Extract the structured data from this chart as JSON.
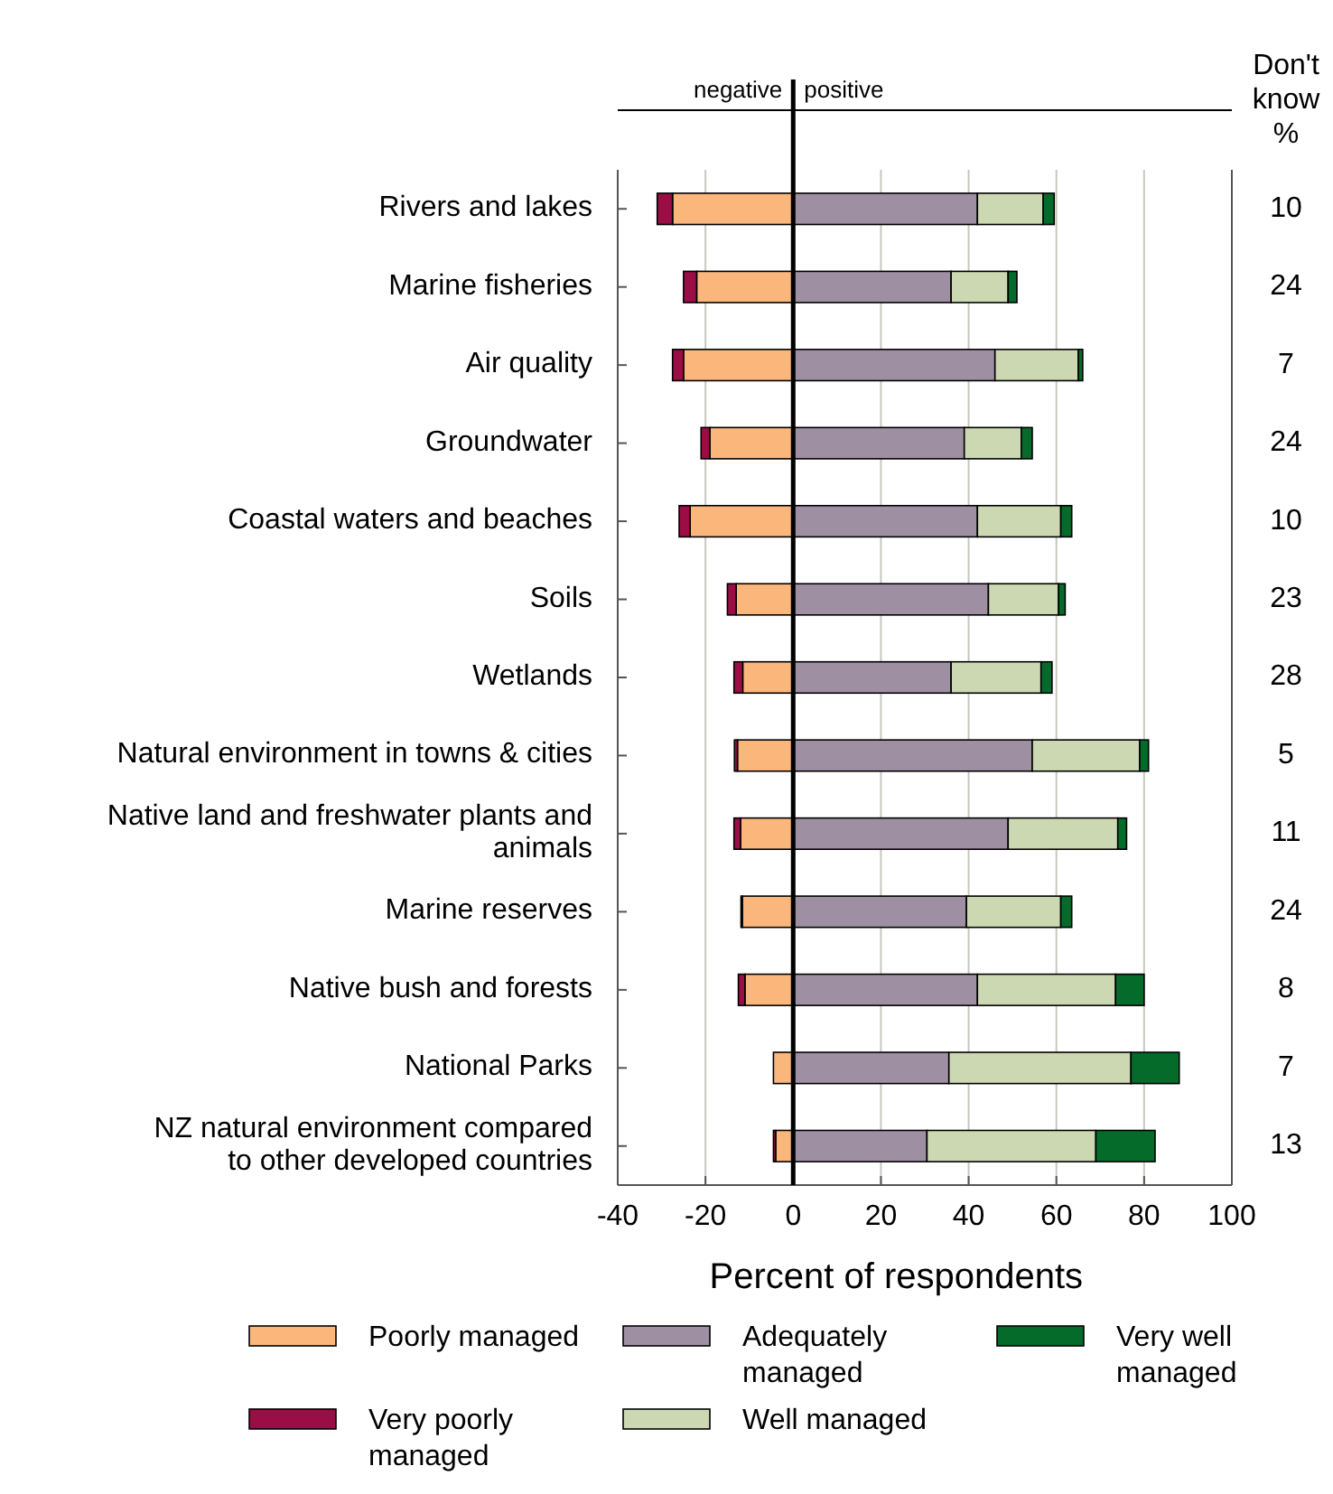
{
  "chart_data": {
    "type": "bar",
    "orientation": "horizontal",
    "stacked": true,
    "categories": [
      "Rivers and lakes",
      "Marine fisheries",
      "Air quality",
      "Groundwater",
      "Coastal waters and beaches",
      "Soils",
      "Wetlands",
      "Natural environment in towns & cities",
      "Native land and freshwater plants and\nanimals",
      "Marine reserves",
      "Native bush and forests",
      "National Parks",
      "NZ natural environment compared\nto other developed countries"
    ],
    "series": [
      {
        "name": "Poorly managed",
        "color": "#fbb77b",
        "values": [
          -27.5,
          -22,
          -25,
          -19,
          -23.5,
          -13,
          -11.5,
          -12.7,
          -12,
          -11.6,
          -11,
          -4.5,
          -4
        ]
      },
      {
        "name": "Very poorly managed",
        "color": "#9b0d45",
        "values": [
          -3.5,
          -3,
          -2.5,
          -2,
          -2.5,
          -2,
          -2,
          -0.7,
          -1.5,
          -0.3,
          -1.5,
          0,
          -0.5
        ]
      },
      {
        "name": "Adequately managed",
        "color": "#9e8fa3",
        "values": [
          42,
          36,
          46,
          39,
          42,
          44.5,
          36,
          54.5,
          49,
          39.5,
          42,
          35.5,
          30.5
        ]
      },
      {
        "name": "Well managed",
        "color": "#cbd8b1",
        "values": [
          15,
          13,
          19,
          13,
          19,
          16,
          20.5,
          24.5,
          25,
          21.5,
          31.5,
          41.5,
          38.5
        ]
      },
      {
        "name": "Very well managed",
        "color": "#046b2a",
        "values": [
          2.5,
          2,
          1,
          2.5,
          2.5,
          1.5,
          2.5,
          2,
          2,
          2.5,
          6.5,
          11,
          13.5
        ]
      }
    ],
    "y2label": "Don't\nknow\n%",
    "y2_categories": [
      "10",
      "24",
      "7",
      "24",
      "10",
      "23",
      "28",
      "5",
      "11",
      "24",
      "8",
      "7",
      "13"
    ],
    "xlabel": "Percent of respondents",
    "xlim": [
      -40,
      100
    ],
    "xticks": [
      -40,
      -20,
      0,
      20,
      40,
      60,
      80,
      100
    ],
    "grid": "x",
    "ref_lines": [
      {
        "axis": "x",
        "value": 0,
        "color": "#000000"
      }
    ],
    "annotations": [
      "negative",
      "positive"
    ],
    "legend": "bottom"
  }
}
